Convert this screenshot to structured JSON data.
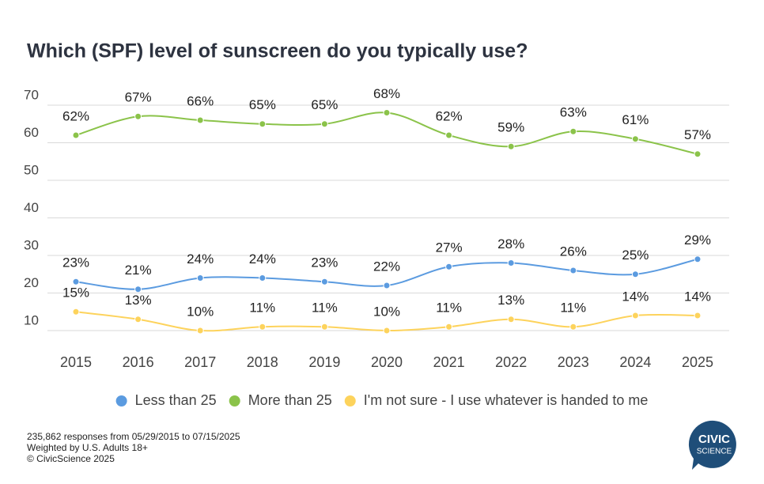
{
  "chart_data": {
    "type": "line",
    "title": "Which (SPF) level of sunscreen do you typically use?",
    "categories": [
      "2015",
      "2016",
      "2017",
      "2018",
      "2019",
      "2020",
      "2021",
      "2022",
      "2023",
      "2024",
      "2025"
    ],
    "series": [
      {
        "name": "Less than 25",
        "color": "#5b9be0",
        "values": [
          23,
          21,
          24,
          24,
          23,
          22,
          27,
          28,
          26,
          25,
          29
        ],
        "value_labels": [
          "23%",
          "21%",
          "24%",
          "24%",
          "23%",
          "22%",
          "27%",
          "28%",
          "26%",
          "25%",
          "29%"
        ]
      },
      {
        "name": "More than 25",
        "color": "#8bc34a",
        "values": [
          62,
          67,
          66,
          65,
          65,
          68,
          62,
          59,
          63,
          61,
          57
        ],
        "value_labels": [
          "62%",
          "67%",
          "66%",
          "65%",
          "65%",
          "68%",
          "62%",
          "59%",
          "63%",
          "61%",
          "57%"
        ]
      },
      {
        "name": "I'm not sure - I use whatever is handed to me",
        "color": "#fdd35c",
        "values": [
          15,
          13,
          10,
          11,
          11,
          10,
          11,
          13,
          11,
          14,
          14
        ],
        "value_labels": [
          "15%",
          "13%",
          "10%",
          "11%",
          "11%",
          "10%",
          "11%",
          "13%",
          "11%",
          "14%",
          "14%"
        ]
      }
    ],
    "ylim": [
      10,
      70
    ],
    "yticks": [
      10,
      20,
      30,
      40,
      50,
      60,
      70
    ],
    "grid": true,
    "legend": "bottom"
  },
  "footer": {
    "notes": [
      "235,862 responses from 05/29/2015 to 07/15/2025",
      "Weighted by U.S. Adults 18+",
      "© CivicScience 2025"
    ],
    "logo": [
      "CIVIC",
      "SCIENCE"
    ]
  }
}
